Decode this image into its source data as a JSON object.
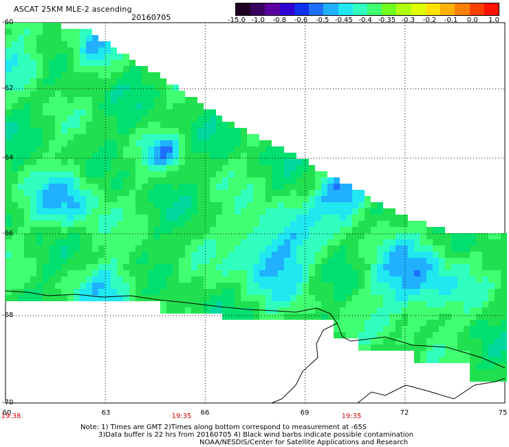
{
  "header": {
    "title": "ASCAT 25KM MLE-2 ascending",
    "date": "20160705"
  },
  "colorbar": {
    "labels": [
      "-15.0",
      "-1.0",
      "-0.8",
      "-0.6",
      "-0.5",
      "-0.45",
      "-0.4",
      "-0.35",
      "-0.3",
      "-0.2",
      "-0.1",
      "0.0",
      "1.0"
    ],
    "colors": [
      "#200020",
      "#3a0060",
      "#5a00a0",
      "#3000d0",
      "#1030f0",
      "#2070ff",
      "#20b0ff",
      "#20e8f0",
      "#30ffc0",
      "#40ff70",
      "#70ff20",
      "#b0ff10",
      "#e0ff00",
      "#ffe000",
      "#ffb000",
      "#ff8000",
      "#ff4000",
      "#ff1000"
    ]
  },
  "axes": {
    "lat_labels": [
      "-60",
      "-62",
      "-64",
      "-66",
      "-68",
      "-70"
    ],
    "lon_labels": [
      "60",
      "63",
      "66",
      "69",
      "72",
      "75"
    ],
    "time_labels": [
      "19:38",
      "19:35",
      "19:35"
    ]
  },
  "notes": {
    "line1": "Note: 1) Times are GMT 2)Times along bottom correspond to measurement at -65S",
    "line2": "3)Data buffer is 22 hrs from 20160705 4) Black wind barbs indicate possible contamination",
    "line3": "NOAA/NESDIS/Center for Satellite Applications and Research"
  }
}
